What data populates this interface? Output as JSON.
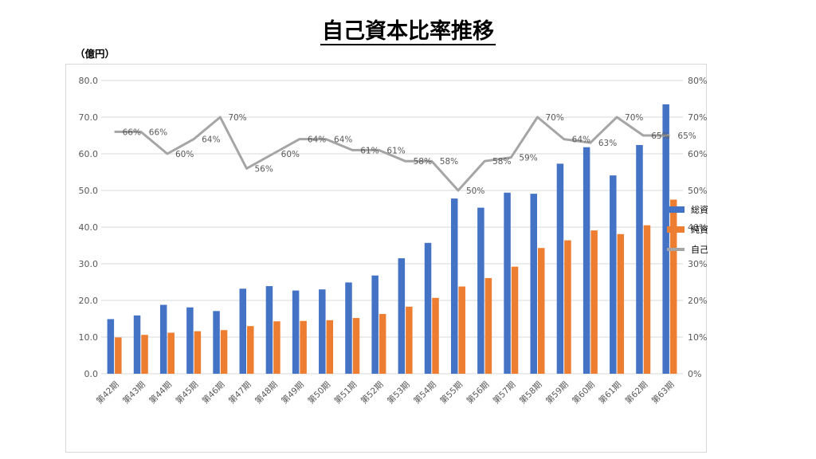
{
  "header": {
    "title": "自己資本比率推移",
    "unit": "（億円）"
  },
  "chart_data": {
    "type": "bar",
    "categories": [
      "第42期",
      "第43期",
      "第44期",
      "第45期",
      "第46期",
      "第47期",
      "第48期",
      "第49期",
      "第50期",
      "第51期",
      "第52期",
      "第53期",
      "第54期",
      "第55期",
      "第56期",
      "第57期",
      "第58期",
      "第59期",
      "第60期",
      "第61期",
      "第62期",
      "第63期"
    ],
    "series": [
      {
        "name": "総資産",
        "type": "bar",
        "color": "#4472c4",
        "values": [
          14.9,
          15.9,
          18.8,
          18.1,
          17.1,
          23.2,
          23.9,
          22.7,
          23.0,
          24.9,
          26.8,
          31.5,
          35.7,
          47.8,
          45.3,
          49.4,
          49.1,
          57.3,
          61.8,
          54.1,
          62.4,
          73.5
        ]
      },
      {
        "name": "純資産",
        "type": "bar",
        "color": "#ed7d31",
        "values": [
          9.9,
          10.6,
          11.2,
          11.6,
          11.9,
          13.0,
          14.3,
          14.4,
          14.6,
          15.2,
          16.3,
          18.3,
          20.7,
          23.8,
          26.1,
          29.2,
          34.3,
          36.4,
          39.1,
          38.1,
          40.5,
          47.5
        ]
      },
      {
        "name": "自己資本率",
        "type": "line",
        "axis": "right",
        "color": "#a5a5a5",
        "values": [
          66,
          66,
          60,
          64,
          70,
          56,
          60,
          64,
          64,
          61,
          61,
          58,
          58,
          50,
          58,
          59,
          70,
          64,
          63,
          70,
          65,
          65
        ],
        "labels": [
          "66%",
          "66%",
          "60%",
          "64%",
          "70%",
          "56%",
          "60%",
          "64%",
          "64%",
          "61%",
          "61%",
          "58%",
          "58%",
          "50%",
          "58%",
          "59%",
          "70%",
          "64%",
          "63%",
          "70%",
          "65%",
          "65%"
        ]
      }
    ],
    "y_left": {
      "ylim": [
        0,
        80
      ],
      "ticks": [
        "0.0",
        "10.0",
        "20.0",
        "30.0",
        "40.0",
        "50.0",
        "60.0",
        "70.0",
        "80.0"
      ]
    },
    "y_right": {
      "ylim": [
        0,
        80
      ],
      "ticks": [
        "0%",
        "10%",
        "20%",
        "30%",
        "40%",
        "50%",
        "60%",
        "70%",
        "80%"
      ]
    },
    "grid": true,
    "legend_position": "right",
    "colors": {
      "axis_text": "#595959",
      "grid": "#d9d9d9"
    }
  }
}
